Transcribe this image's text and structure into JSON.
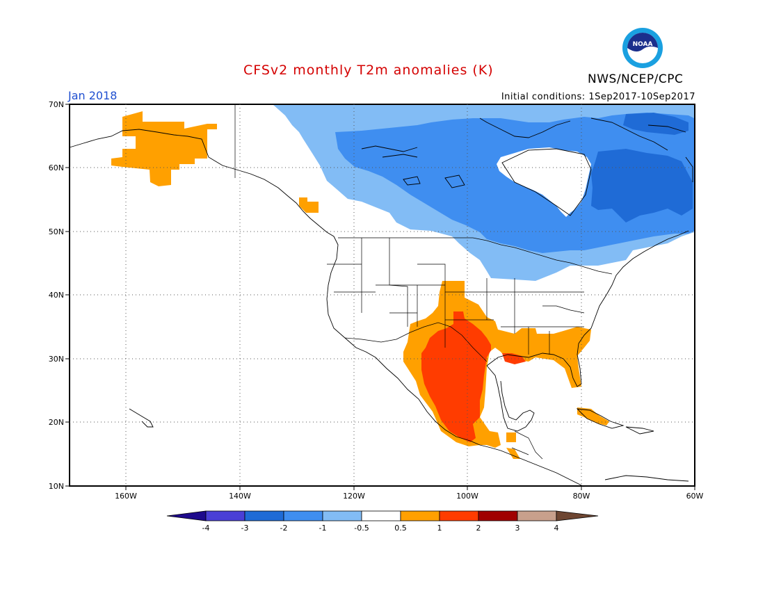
{
  "map": {
    "title": "CFSv2 monthly T2m anomalies (K)",
    "agency": "NWS/NCEP/CPC",
    "valid_month": "Jan 2018",
    "initial_conditions": "Initial conditions: 1Sep2017-10Sep2017",
    "lat_labels": [
      "70N",
      "60N",
      "50N",
      "40N",
      "30N",
      "20N",
      "10N"
    ],
    "lon_labels": [
      "160W",
      "140W",
      "120W",
      "100W",
      "80W",
      "60W"
    ],
    "logo_text": "NOAA"
  },
  "legend": {
    "labels": [
      "-4",
      "-3",
      "-2",
      "-1",
      "-0.5",
      "0.5",
      "1",
      "2",
      "3",
      "4"
    ],
    "colors": {
      "lt_m4": "#1e0a8c",
      "m4_m3": "#4a3fd6",
      "m3_m2": "#1f6bd6",
      "m2_m1": "#3f8ef0",
      "m1_m05": "#82bcf5",
      "m05_05": "#ffffff",
      "05_1": "#ffa000",
      "1_2": "#ff3c00",
      "2_3": "#a00000",
      "3_4": "#c8a08c",
      "gt_4": "#6e4632"
    }
  }
}
